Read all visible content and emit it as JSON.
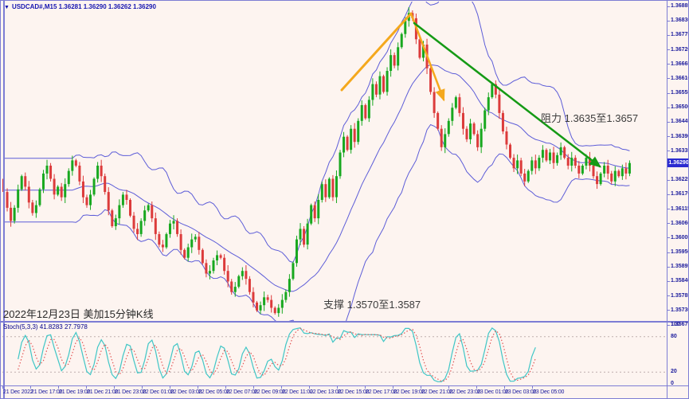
{
  "window": {
    "title_line": "USDCAD#,M15 1.36281 1.36290 1.36262 1.36290"
  },
  "colors": {
    "background": "#fdf4f0",
    "frame": "#7d7dd4",
    "bull": "#18a81f",
    "bear": "#dc3b3b",
    "bollinger": "#5d5dd8",
    "stoch_k": "#3fc6c6",
    "stoch_d": "#e35555",
    "level_dash": "#bfaeae",
    "trend_orange": "#f4a81d",
    "trend_green": "#159a15",
    "axis_text": "#1a1a9c",
    "price_box_bg": "#2b2bd0"
  },
  "chart_data": {
    "type": "candlestick",
    "symbol": "USDCAD#",
    "timeframe": "M15",
    "quote": {
      "open": "1.36281",
      "high": "1.36290",
      "low": "1.36262",
      "close": "1.36290"
    },
    "current_price_label": "1.36290",
    "price_axis_labels": [
      "1.36885",
      "1.36830",
      "1.36775",
      "1.36720",
      "1.36665",
      "1.36610",
      "1.36555",
      "1.36500",
      "1.36445",
      "1.36390",
      "1.36335",
      "1.36280",
      "1.36225",
      "1.36170",
      "1.36115",
      "1.36060",
      "1.36005",
      "1.35950",
      "1.35895",
      "1.35840",
      "1.35785",
      "1.35730",
      "1.35675"
    ],
    "time_labels": [
      "21 Dec 2022",
      "21 Dec 17:00",
      "21 Dec 19:00",
      "21 Dec 21:00",
      "21 Dec 23:00",
      "22 Dec 01:00",
      "22 Dec 03:00",
      "22 Dec 05:00",
      "22 Dec 07:00",
      "22 Dec 09:00",
      "22 Dec 11:00",
      "22 Dec 13:00",
      "22 Dec 15:00",
      "22 Dec 17:00",
      "22 Dec 19:00",
      "22 Dec 21:00",
      "22 Dec 23:00",
      "23 Dec 01:00",
      "23 Dec 03:00",
      "23 Dec 05:00"
    ],
    "candles_close": [
      1.3618,
      1.3612,
      1.3607,
      1.3612,
      1.3619,
      1.3624,
      1.362,
      1.3614,
      1.361,
      1.3613,
      1.3619,
      1.3625,
      1.3628,
      1.3623,
      1.3617,
      1.362,
      1.3616,
      1.3621,
      1.3626,
      1.363,
      1.3628,
      1.3622,
      1.3616,
      1.3613,
      1.3617,
      1.3623,
      1.3628,
      1.3624,
      1.3618,
      1.3611,
      1.3605,
      1.3608,
      1.3613,
      1.3617,
      1.3615,
      1.3609,
      1.3604,
      1.3602,
      1.3607,
      1.3611,
      1.3613,
      1.3608,
      1.3602,
      1.3598,
      1.3597,
      1.3602,
      1.3606,
      1.3607,
      1.3602,
      1.3596,
      1.3593,
      1.3597,
      1.36,
      1.3601,
      1.3596,
      1.3591,
      1.3587,
      1.3588,
      1.3592,
      1.3594,
      1.3593,
      1.3588,
      1.3584,
      1.358,
      1.3582,
      1.3586,
      1.3588,
      1.3585,
      1.358,
      1.3576,
      1.3573,
      1.3575,
      1.3578,
      1.3577,
      1.3574,
      1.3572,
      1.3574,
      1.3577,
      1.358,
      1.3585,
      1.3591,
      1.36,
      1.3604,
      1.3598,
      1.3606,
      1.3613,
      1.3608,
      1.3615,
      1.3621,
      1.3616,
      1.3623,
      1.3616,
      1.3624,
      1.3633,
      1.3639,
      1.3634,
      1.3642,
      1.3637,
      1.3645,
      1.3651,
      1.3646,
      1.3653,
      1.3659,
      1.3655,
      1.3662,
      1.3656,
      1.3664,
      1.367,
      1.3666,
      1.3673,
      1.3678,
      1.3683,
      1.3686,
      1.3684,
      1.3676,
      1.3669,
      1.3674,
      1.3665,
      1.3656,
      1.3648,
      1.3642,
      1.3635,
      1.364,
      1.3645,
      1.365,
      1.3654,
      1.3648,
      1.3642,
      1.3638,
      1.3644,
      1.364,
      1.3635,
      1.3642,
      1.3649,
      1.3654,
      1.3659,
      1.3655,
      1.3648,
      1.3641,
      1.3636,
      1.3631,
      1.3627,
      1.363,
      1.3625,
      1.3622,
      1.3626,
      1.363,
      1.3627,
      1.3631,
      1.3634,
      1.363,
      1.3633,
      1.3629,
      1.3632,
      1.3635,
      1.3631,
      1.3628,
      1.3631,
      1.3628,
      1.3625,
      1.3628,
      1.3631,
      1.3628,
      1.3624,
      1.3621,
      1.3625,
      1.3628,
      1.3625,
      1.3622,
      1.3626,
      1.3624,
      1.3627,
      1.3625,
      1.3629
    ],
    "bollinger": {
      "period": 20,
      "deviation": 2
    },
    "stochastic": {
      "label": "Stoch(5,3,3) 41.8283 27.7978",
      "k": 5,
      "d": 3,
      "slowing": 3,
      "main": 41.8283,
      "signal": 27.7978,
      "levels": [
        80,
        20
      ],
      "scale_labels": [
        "100",
        "80",
        "20",
        "0"
      ]
    },
    "trendlines": [
      {
        "id": "orange-rising-line",
        "color": "#f4a81d",
        "width": 3,
        "from": [
          428,
          112
        ],
        "to": [
          515,
          16
        ],
        "arrow": false
      },
      {
        "id": "orange-falling-arrow",
        "color": "#f4a81d",
        "width": 2.5,
        "from": [
          515,
          16
        ],
        "to": [
          556,
          124
        ],
        "arrow": true
      },
      {
        "id": "green-resistance-arrow",
        "color": "#159a15",
        "width": 2.5,
        "from": [
          519,
          28
        ],
        "to": [
          752,
          208
        ],
        "arrow": true
      }
    ],
    "annotations": {
      "resistance": "阻力 1.3635至1.3657",
      "support": "支撑 1.3570至1.3587",
      "date_note": "2022年12月23日 美加15分钟K线"
    }
  }
}
